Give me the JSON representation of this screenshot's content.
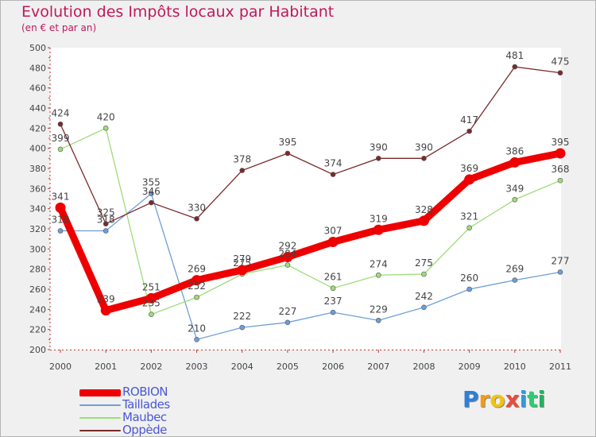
{
  "header": {
    "title": "Evolution des Impôts locaux par Habitant",
    "subtitle": "(en € et par an)"
  },
  "brand": {
    "letters": [
      "P",
      "r",
      "o",
      "x",
      "i",
      "t",
      "i"
    ],
    "colors": [
      "#2f7fd6",
      "#f39c12",
      "#f1c40f",
      "#e74c3c",
      "#3498db",
      "#2ecc71",
      "#27ae60"
    ]
  },
  "chart_data": {
    "type": "line",
    "title": "Evolution des Impôts locaux par Habitant",
    "subtitle": "(en € et par an)",
    "xlabel": "",
    "ylabel": "",
    "ylim": [
      200,
      500
    ],
    "yticks": [
      200,
      220,
      240,
      260,
      280,
      300,
      320,
      340,
      360,
      380,
      400,
      420,
      440,
      460,
      480,
      500
    ],
    "grid": false,
    "legend_position": "bottom-left",
    "x": [
      "2000",
      "2001",
      "2002",
      "2003",
      "2004",
      "2005",
      "2006",
      "2007",
      "2008",
      "2009",
      "2010",
      "2011"
    ],
    "series": [
      {
        "name": "ROBION",
        "color": "#ee0000",
        "emphasis": true,
        "values": [
          341,
          239,
          251,
          269,
          279,
          292,
          307,
          319,
          328,
          369,
          386,
          395
        ],
        "labels": [
          "341",
          "239",
          "251",
          "269",
          "279",
          "292",
          "307",
          "319",
          "328",
          "369",
          "386",
          "395"
        ]
      },
      {
        "name": "Taillades",
        "color": "#6d9ed9",
        "emphasis": false,
        "values": [
          318,
          318,
          355,
          210,
          222,
          227,
          237,
          229,
          242,
          260,
          269,
          277
        ],
        "labels": [
          "318",
          "318",
          "355",
          "210",
          "222",
          "227",
          "237",
          "229",
          "242",
          "260",
          "269",
          "277"
        ]
      },
      {
        "name": "Maubec",
        "color": "#9ddc7a",
        "emphasis": false,
        "values": [
          399,
          420,
          235,
          252,
          275,
          284,
          261,
          274,
          275,
          321,
          349,
          368
        ],
        "labels": [
          "399",
          "420",
          "235",
          "252",
          "275",
          "284",
          "261",
          "274",
          "275",
          "321",
          "349",
          "368"
        ]
      },
      {
        "name": "Oppède",
        "color": "#7a2a2a",
        "emphasis": false,
        "values": [
          424,
          325,
          346,
          330,
          378,
          395,
          374,
          390,
          390,
          417,
          481,
          475
        ],
        "labels": [
          "424",
          "325",
          "346",
          "330",
          "378",
          "395",
          "374",
          "390",
          "390",
          "417",
          "481",
          "475"
        ]
      }
    ]
  }
}
